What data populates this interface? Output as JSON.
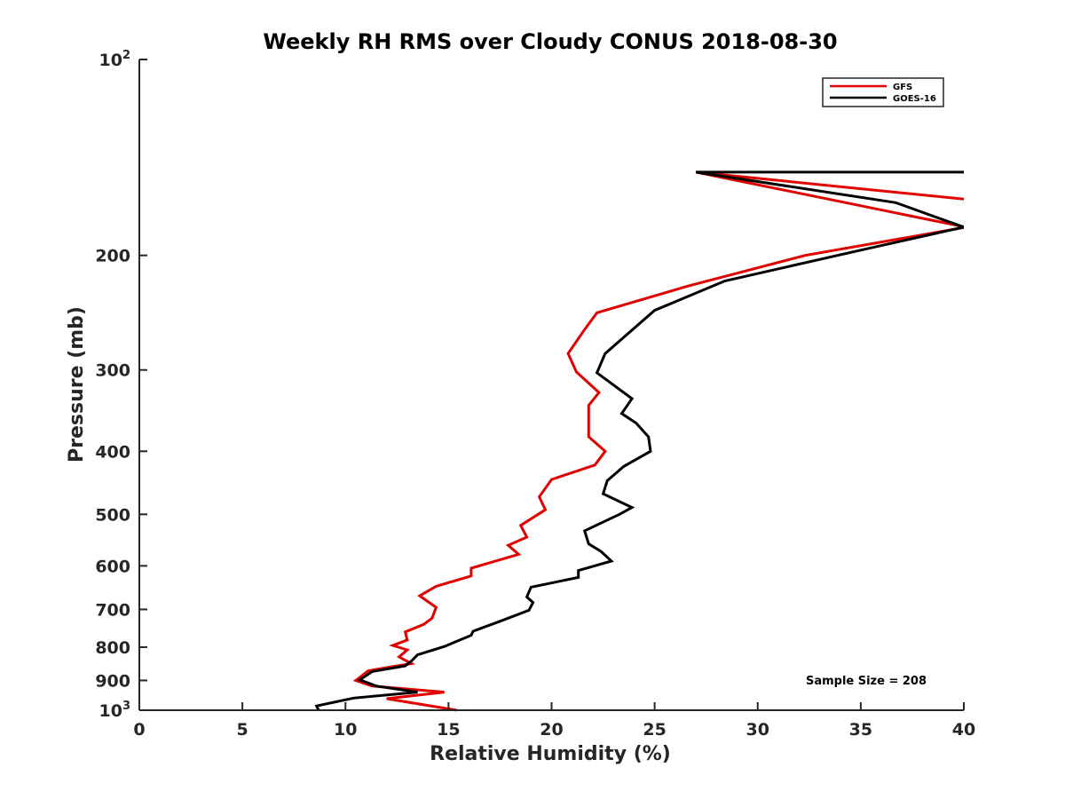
{
  "chart_data": {
    "type": "line",
    "title": "Weekly RH RMS over Cloudy CONUS 2018-08-30",
    "xlabel": "Relative Humidity (%)",
    "ylabel": "Pressure (mb)",
    "xlim": [
      0,
      40
    ],
    "ylim": [
      100,
      1000
    ],
    "y_scale": "log",
    "y_reversed": true,
    "grid": false,
    "legend_position": "top-right",
    "x_ticks": [
      0,
      5,
      10,
      15,
      20,
      25,
      30,
      35,
      40
    ],
    "y_ticks": [
      {
        "value": 100,
        "base": "10",
        "exp": "2"
      },
      {
        "value": 200,
        "label": "200"
      },
      {
        "value": 300,
        "label": "300"
      },
      {
        "value": 400,
        "label": "400"
      },
      {
        "value": 500,
        "label": "500"
      },
      {
        "value": 600,
        "label": "600"
      },
      {
        "value": 700,
        "label": "700"
      },
      {
        "value": 800,
        "label": "800"
      },
      {
        "value": 900,
        "label": "900"
      },
      {
        "value": 1000,
        "base": "10",
        "exp": "3"
      }
    ],
    "series": [
      {
        "name": "GFS",
        "color": "#e00000",
        "points": [
          [
            40.1,
            164
          ],
          [
            27.0,
            149
          ],
          [
            40.1,
            181
          ],
          [
            32.3,
            200
          ],
          [
            26.6,
            223
          ],
          [
            22.2,
            245
          ],
          [
            21.6,
            260
          ],
          [
            20.8,
            283
          ],
          [
            21.2,
            302
          ],
          [
            22.3,
            325
          ],
          [
            21.8,
            340
          ],
          [
            21.8,
            380
          ],
          [
            22.6,
            400
          ],
          [
            22.1,
            420
          ],
          [
            20.0,
            442
          ],
          [
            19.4,
            470
          ],
          [
            19.7,
            492
          ],
          [
            18.5,
            520
          ],
          [
            18.8,
            542
          ],
          [
            17.9,
            558
          ],
          [
            18.4,
            576
          ],
          [
            16.1,
            605
          ],
          [
            16.1,
            622
          ],
          [
            14.4,
            645
          ],
          [
            13.6,
            667
          ],
          [
            14.4,
            695
          ],
          [
            14.2,
            722
          ],
          [
            13.8,
            738
          ],
          [
            12.9,
            758
          ],
          [
            13.0,
            780
          ],
          [
            12.3,
            795
          ],
          [
            13.0,
            808
          ],
          [
            12.6,
            828
          ],
          [
            13.2,
            848
          ],
          [
            12.0,
            860
          ],
          [
            11.1,
            870
          ],
          [
            10.5,
            900
          ],
          [
            11.3,
            918
          ],
          [
            14.8,
            938
          ],
          [
            12.0,
            960
          ],
          [
            15.4,
            1000
          ]
        ]
      },
      {
        "name": "GOES-16",
        "color": "#000000",
        "points": [
          [
            40.1,
            149
          ],
          [
            27.0,
            149
          ],
          [
            36.7,
            166
          ],
          [
            40.0,
            181
          ],
          [
            34.8,
            197
          ],
          [
            28.4,
            219
          ],
          [
            25.0,
            243
          ],
          [
            22.6,
            283
          ],
          [
            22.2,
            303
          ],
          [
            23.9,
            332
          ],
          [
            23.4,
            350
          ],
          [
            24.1,
            362
          ],
          [
            24.7,
            380
          ],
          [
            24.8,
            400
          ],
          [
            23.5,
            422
          ],
          [
            22.7,
            444
          ],
          [
            22.5,
            465
          ],
          [
            23.9,
            488
          ],
          [
            23.3,
            500
          ],
          [
            21.6,
            530
          ],
          [
            21.8,
            555
          ],
          [
            22.4,
            570
          ],
          [
            22.9,
            590
          ],
          [
            21.3,
            610
          ],
          [
            21.3,
            625
          ],
          [
            19.0,
            647
          ],
          [
            18.8,
            670
          ],
          [
            19.1,
            683
          ],
          [
            18.9,
            702
          ],
          [
            17.5,
            730
          ],
          [
            16.2,
            756
          ],
          [
            16.1,
            767
          ],
          [
            14.8,
            798
          ],
          [
            13.5,
            822
          ],
          [
            13.2,
            840
          ],
          [
            12.9,
            855
          ],
          [
            11.3,
            872
          ],
          [
            10.7,
            898
          ],
          [
            11.5,
            918
          ],
          [
            13.5,
            938
          ],
          [
            10.4,
            958
          ],
          [
            8.6,
            985
          ],
          [
            8.7,
            1000
          ]
        ]
      }
    ],
    "annotation": "Sample Size = 208"
  }
}
